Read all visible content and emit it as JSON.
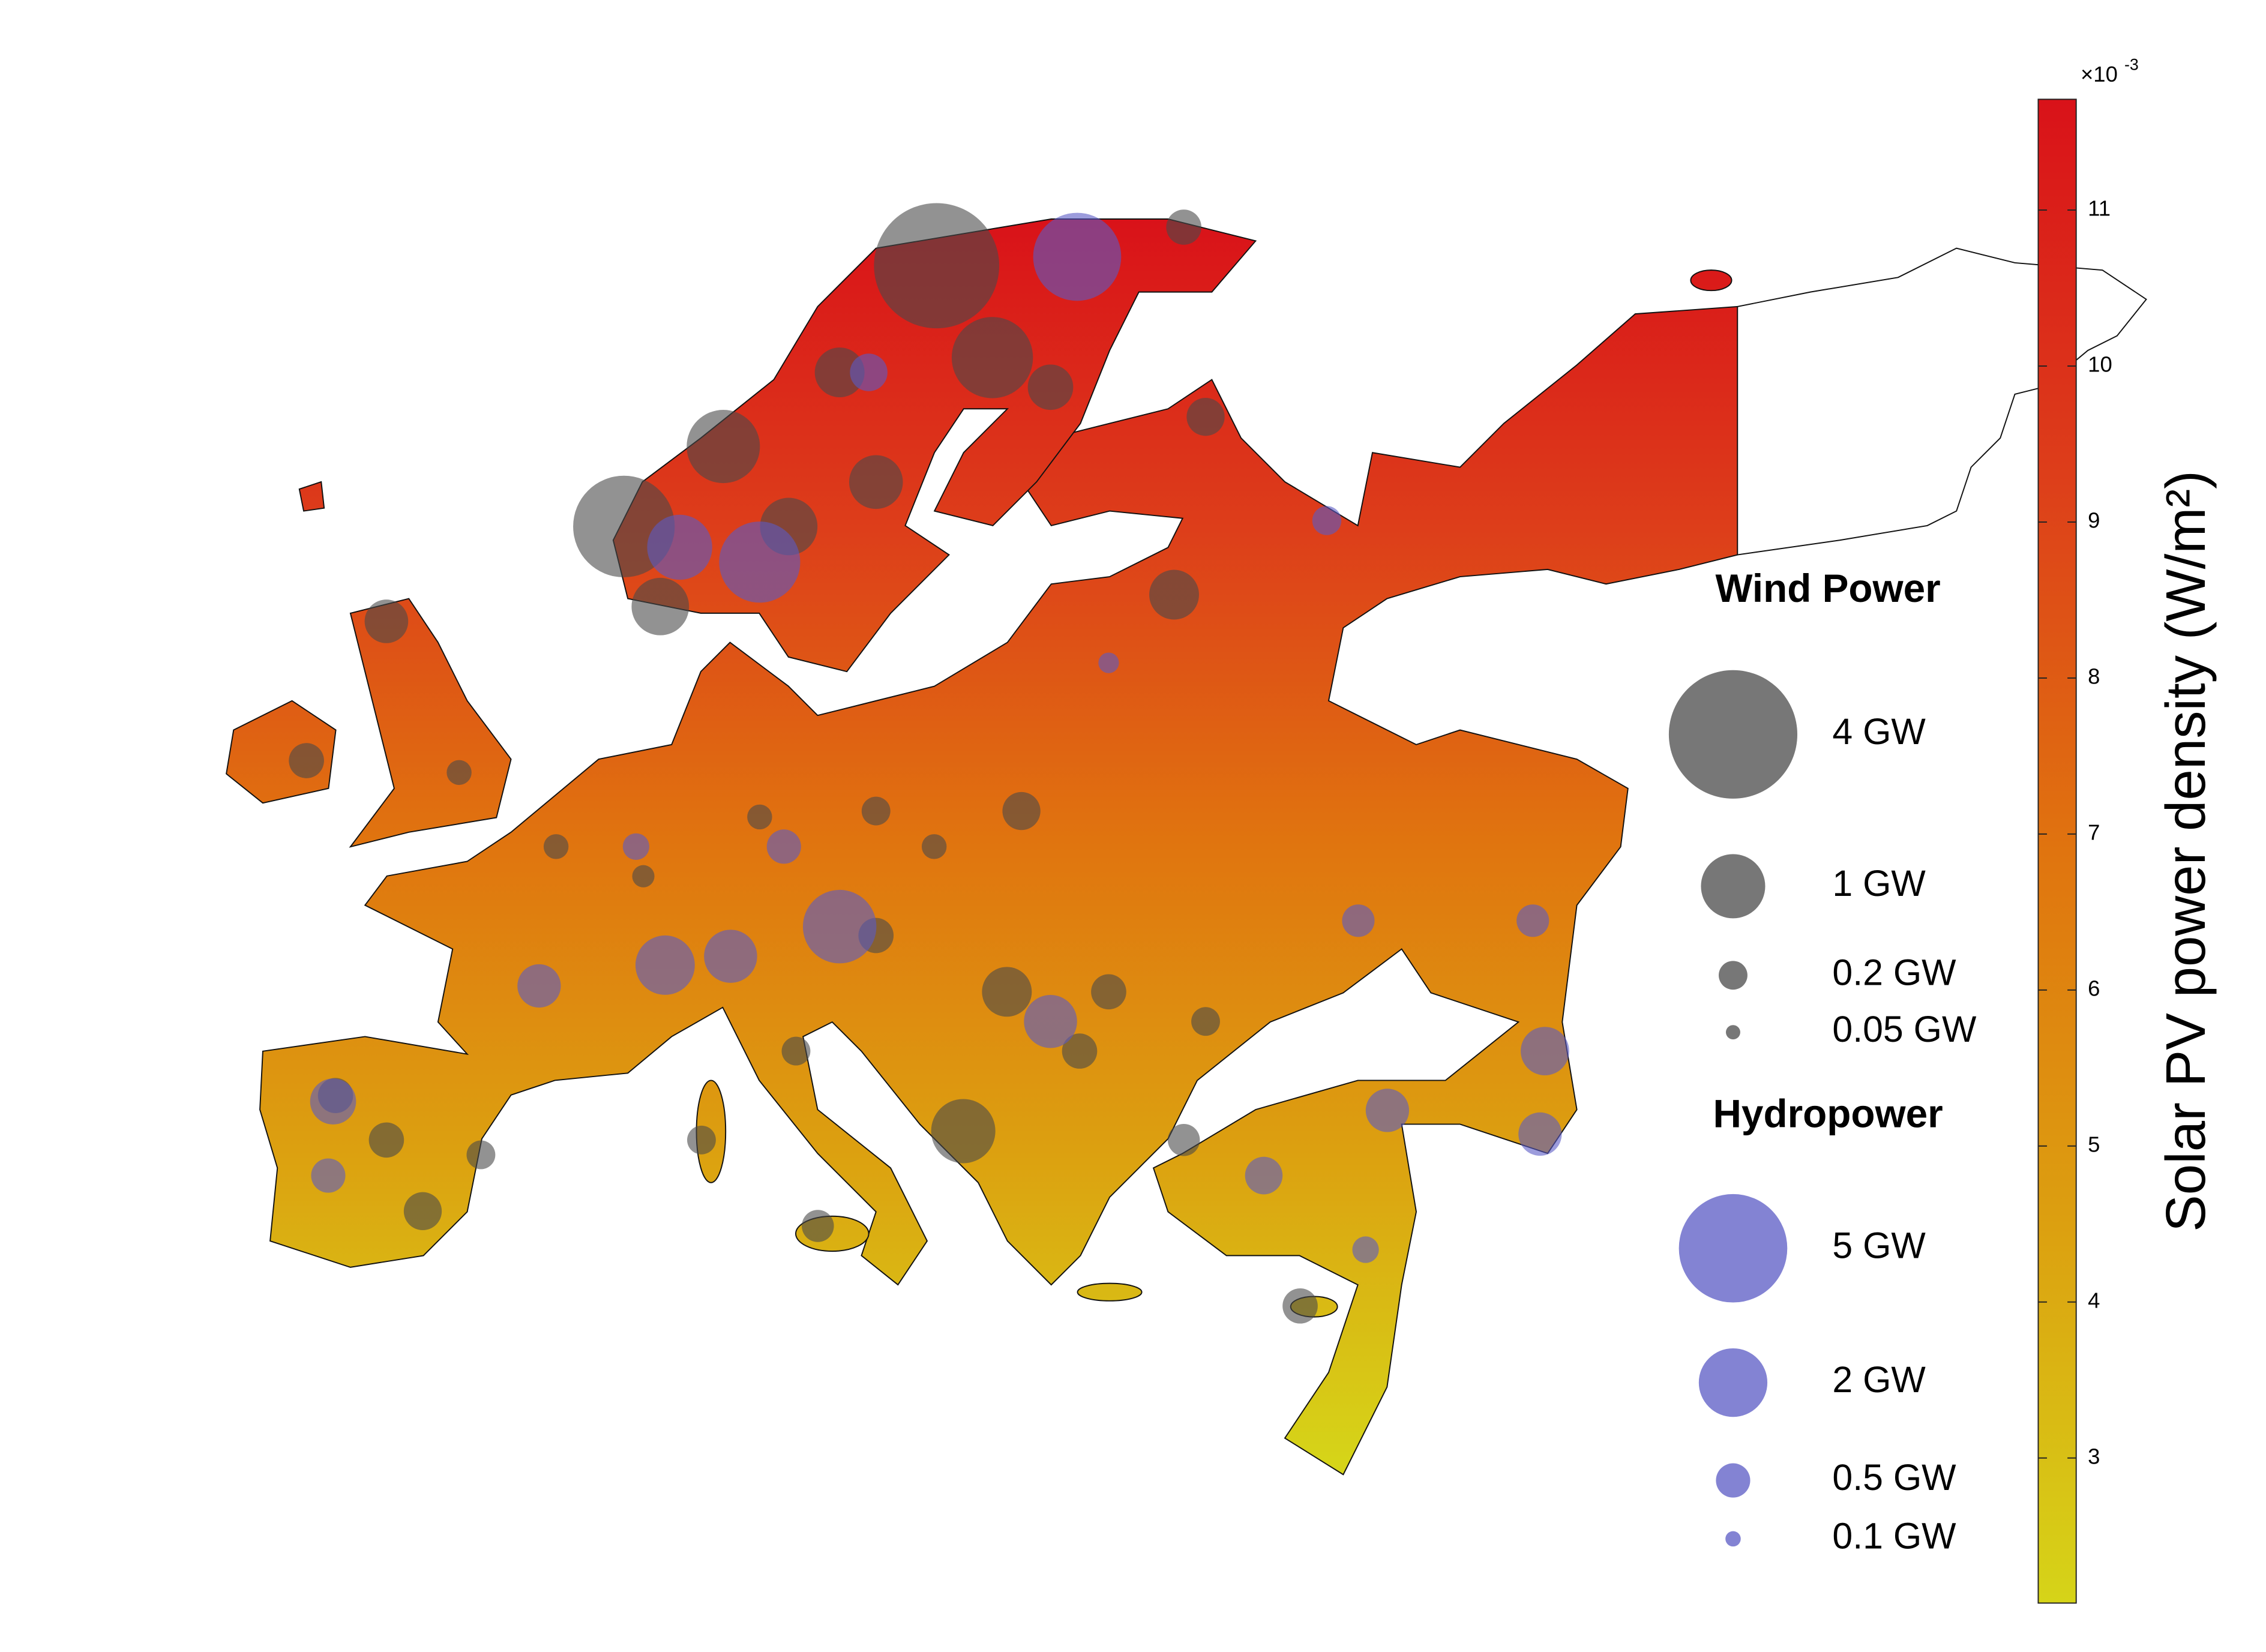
{
  "chart_data": {
    "type": "bubble-map",
    "colorbar": {
      "title": "Solar PV power density (W/m²)",
      "multiplier": "×10",
      "exponent": "-3",
      "lim": [
        2.07,
        11.71
      ],
      "ticks": [
        3,
        4,
        5,
        6,
        7,
        8,
        9,
        10,
        11
      ],
      "colormap": [
        "#d6d418",
        "#dca010",
        "#e0740f",
        "#dd3e1a",
        "#d91219"
      ]
    },
    "series": [
      {
        "name": "Wind Power",
        "color": "#4a4a4a",
        "lon": [
          18.5,
          5.6,
          9.7,
          20.8,
          7.1,
          19.6,
          28.3,
          -4.2,
          22.0,
          21.4,
          12.4,
          16.0,
          29.6,
          28.7,
          23.2,
          14.5,
          -6.3,
          -2.7,
          -4.2,
          -0.3,
          2.8,
          6.4,
          11.2,
          16.0,
          18.4,
          16.0,
          24.4,
          28.7,
          33.5,
          -7.5,
          -1.2,
          8.8,
          13.6,
          25.6,
          12.7,
          29.6
        ],
        "lat": [
          70.4,
          61.6,
          64.3,
          67.3,
          58.9,
          41.2,
          59.3,
          58.4,
          52.0,
          45.9,
          61.6,
          63.1,
          65.3,
          71.7,
          66.3,
          66.8,
          42.4,
          38.5,
          40.9,
          40.4,
          50.8,
          49.8,
          51.8,
          52.0,
          50.8,
          47.8,
          43.9,
          40.9,
          35.3,
          53.7,
          53.3,
          40.9,
          38.0,
          45.9,
          43.9,
          44.9
        ],
        "values": [
          3.8,
          2.5,
          1.3,
          1.6,
          0.8,
          1.0,
          0.6,
          0.46,
          0.35,
          0.6,
          0.8,
          0.7,
          0.35,
          0.3,
          0.5,
          0.6,
          0.3,
          0.35,
          0.3,
          0.2,
          0.15,
          0.12,
          0.15,
          0.2,
          0.15,
          0.3,
          0.3,
          0.25,
          0.3,
          0.3,
          0.15,
          0.2,
          0.25,
          0.3,
          0.2,
          0.2
        ],
        "legend": [
          {
            "value": 4,
            "label": "4 GW"
          },
          {
            "value": 1,
            "label": "1 GW"
          },
          {
            "value": 0.2,
            "label": "0.2 GW"
          },
          {
            "value": 0.05,
            "label": "0.05 GW"
          }
        ]
      },
      {
        "name": "Hydropower",
        "color": "#5a5ac4",
        "lon": [
          24.3,
          11.2,
          7.9,
          14.5,
          7.3,
          2.1,
          23.2,
          -6.4,
          32.0,
          37.1,
          43.6,
          43.4,
          34.6,
          12.2,
          43.1,
          35.9,
          10.0,
          6.1,
          25.6,
          -6.6,
          15.7,
          36.2
        ],
        "lat": [
          70.7,
          60.4,
          60.9,
          48.1,
          46.8,
          46.1,
          44.9,
          42.2,
          39.7,
          41.9,
          43.9,
          41.1,
          61.8,
          50.8,
          48.3,
          48.3,
          47.1,
          50.8,
          57.0,
          39.7,
          66.8,
          37.2
        ],
        "values": [
          3.3,
          2.8,
          1.8,
          2.3,
          1.5,
          0.8,
          1.2,
          0.9,
          0.6,
          0.8,
          1.0,
          0.8,
          0.36,
          0.5,
          0.45,
          0.45,
          1.2,
          0.3,
          0.18,
          0.5,
          0.6,
          0.3
        ],
        "legend": [
          {
            "value": 5,
            "label": "5 GW"
          },
          {
            "value": 2,
            "label": "2 GW"
          },
          {
            "value": 0.5,
            "label": "0.5 GW"
          },
          {
            "value": 0.1,
            "label": "0.1 GW"
          }
        ]
      }
    ]
  }
}
